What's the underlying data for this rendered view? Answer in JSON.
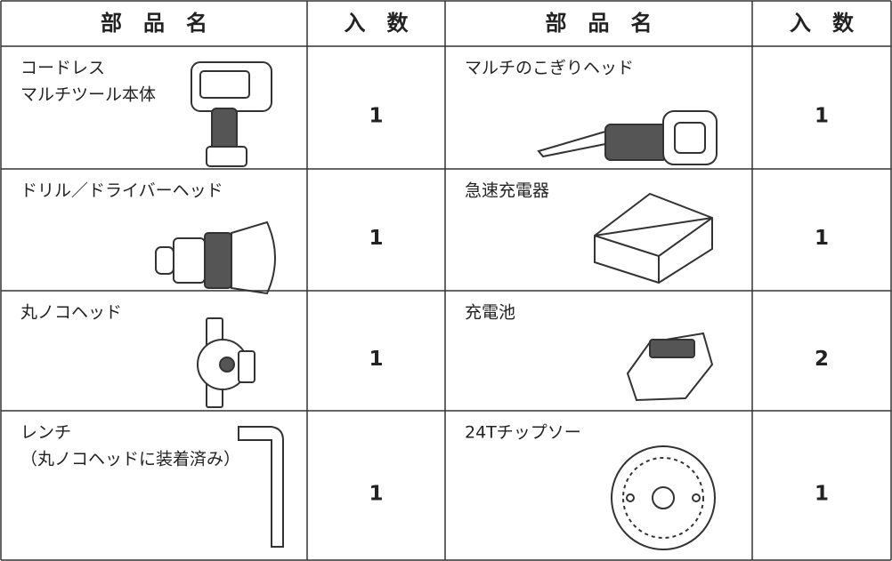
{
  "table": {
    "header": [
      "部　品　名",
      "入　数",
      "部　品　名",
      "入　数"
    ],
    "rows": [
      [
        [
          "コードレス",
          "マルチツール本体"
        ],
        1,
        [
          "マルチのこぎりヘッド"
        ],
        1
      ],
      [
        [
          "ドリル／ドライバーヘッド"
        ],
        1,
        [
          "急速充電器"
        ],
        1
      ],
      [
        [
          "丸ノコヘッド"
        ],
        1,
        [
          "充電池"
        ],
        2
      ],
      [
        [
          "レンチ",
          "（丸ノコヘッドに装着済み）"
        ],
        1,
        [
          "24Tチップソー"
        ],
        1
      ]
    ]
  }
}
